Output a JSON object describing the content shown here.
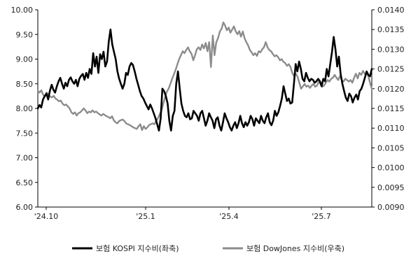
{
  "chart_data": {
    "type": "line",
    "title": "",
    "x_ticks": [
      "'24.10",
      "'25.1",
      "'25.4",
      "'25.7"
    ],
    "y_left": {
      "min": 6.0,
      "max": 10.0,
      "ticks": [
        "6.00",
        "6.50",
        "7.00",
        "7.50",
        "8.00",
        "8.50",
        "9.00",
        "9.50",
        "10.00"
      ]
    },
    "y_right": {
      "min": 0.009,
      "max": 0.014,
      "ticks": [
        "0.0090",
        "0.0095",
        "0.0100",
        "0.0105",
        "0.0110",
        "0.0115",
        "0.0120",
        "0.0125",
        "0.0130",
        "0.0135",
        "0.0140"
      ]
    },
    "grid": false,
    "legend_position": "bottom",
    "series": [
      {
        "name": "보험 KOSPI 지수비(좌축)",
        "axis": "left",
        "color": "#000000",
        "values": [
          8.0,
          8.07,
          8.02,
          8.18,
          8.25,
          8.3,
          8.18,
          8.36,
          8.48,
          8.38,
          8.32,
          8.45,
          8.55,
          8.62,
          8.5,
          8.4,
          8.52,
          8.45,
          8.58,
          8.63,
          8.55,
          8.5,
          8.58,
          8.45,
          8.6,
          8.66,
          8.7,
          8.58,
          8.72,
          8.62,
          8.8,
          8.7,
          9.12,
          8.85,
          9.05,
          8.72,
          9.1,
          9.0,
          9.15,
          8.85,
          8.95,
          9.35,
          9.6,
          9.3,
          9.15,
          9.0,
          8.75,
          8.6,
          8.5,
          8.4,
          8.5,
          8.72,
          8.68,
          8.85,
          8.92,
          8.88,
          8.75,
          8.6,
          8.48,
          8.35,
          8.25,
          8.2,
          8.12,
          8.05,
          7.98,
          8.08,
          8.0,
          7.9,
          7.8,
          7.68,
          7.55,
          7.8,
          8.4,
          8.35,
          8.25,
          8.1,
          7.75,
          7.55,
          7.85,
          7.95,
          8.5,
          8.75,
          8.4,
          8.1,
          7.95,
          7.85,
          7.82,
          7.9,
          7.78,
          7.8,
          7.95,
          7.9,
          7.85,
          7.75,
          7.9,
          7.95,
          7.8,
          7.65,
          7.75,
          7.9,
          7.82,
          7.75,
          7.6,
          7.78,
          7.82,
          7.65,
          7.55,
          7.72,
          7.9,
          7.8,
          7.72,
          7.62,
          7.55,
          7.65,
          7.72,
          7.6,
          7.7,
          7.85,
          7.7,
          7.62,
          7.72,
          7.65,
          7.72,
          7.85,
          7.78,
          7.65,
          7.8,
          7.75,
          7.7,
          7.85,
          7.75,
          7.7,
          7.82,
          7.9,
          7.72,
          7.66,
          7.75,
          7.95,
          7.85,
          7.92,
          8.05,
          8.2,
          8.45,
          8.3,
          8.15,
          8.2,
          8.1,
          8.12,
          8.5,
          8.9,
          8.75,
          8.95,
          8.8,
          8.6,
          8.55,
          8.72,
          8.62,
          8.55,
          8.6,
          8.58,
          8.52,
          8.55,
          8.6,
          8.55,
          8.45,
          8.6,
          8.55,
          8.8,
          8.65,
          8.9,
          9.15,
          9.45,
          9.2,
          8.85,
          9.05,
          8.7,
          8.5,
          8.35,
          8.22,
          8.15,
          8.3,
          8.25,
          8.12,
          8.22,
          8.28,
          8.18,
          8.35,
          8.4,
          8.5,
          8.62,
          8.75,
          8.68,
          8.65,
          8.8
        ]
      },
      {
        "name": "보험 DowJones 지수비(우축)",
        "axis": "right",
        "color": "#8c8c8c",
        "values": [
          0.01195,
          0.0119,
          0.01196,
          0.01185,
          0.0118,
          0.0119,
          0.01186,
          0.0118,
          0.01178,
          0.01182,
          0.01175,
          0.01172,
          0.01168,
          0.0117,
          0.01162,
          0.01158,
          0.0116,
          0.01155,
          0.0115,
          0.0114,
          0.01136,
          0.0114,
          0.01132,
          0.01138,
          0.0114,
          0.01145,
          0.0115,
          0.01145,
          0.01138,
          0.01142,
          0.0114,
          0.01145,
          0.0114,
          0.01142,
          0.01138,
          0.01135,
          0.01132,
          0.01136,
          0.01133,
          0.0113,
          0.01128,
          0.01125,
          0.0113,
          0.0112,
          0.01115,
          0.01112,
          0.01118,
          0.0112,
          0.01122,
          0.01118,
          0.01112,
          0.0111,
          0.01108,
          0.01105,
          0.01102,
          0.011,
          0.01098,
          0.01105,
          0.0111,
          0.01095,
          0.01105,
          0.01098,
          0.01102,
          0.01108,
          0.0111,
          0.01112,
          0.0111,
          0.01118,
          0.01125,
          0.01135,
          0.01145,
          0.01162,
          0.01178,
          0.01192,
          0.012,
          0.01212,
          0.01225,
          0.01236,
          0.01248,
          0.01262,
          0.01275,
          0.01285,
          0.01295,
          0.0129,
          0.01298,
          0.01305,
          0.01295,
          0.01288,
          0.01272,
          0.01285,
          0.013,
          0.01305,
          0.01298,
          0.01312,
          0.01302,
          0.01316,
          0.01295,
          0.01318,
          0.01255,
          0.01335,
          0.01285,
          0.01318,
          0.01328,
          0.01345,
          0.01352,
          0.01368,
          0.0136,
          0.01348,
          0.01355,
          0.01342,
          0.0135,
          0.01358,
          0.01345,
          0.01338,
          0.01346,
          0.01332,
          0.01345,
          0.01328,
          0.01318,
          0.0131,
          0.01298,
          0.01292,
          0.01285,
          0.0129,
          0.01283,
          0.01295,
          0.01292,
          0.013,
          0.01305,
          0.01318,
          0.01305,
          0.01298,
          0.01295,
          0.01288,
          0.01282,
          0.01285,
          0.0128,
          0.01272,
          0.01275,
          0.01268,
          0.01265,
          0.01258,
          0.01262,
          0.01255,
          0.0124,
          0.01232,
          0.01238,
          0.0123,
          0.01215,
          0.012,
          0.01206,
          0.01212,
          0.01205,
          0.01208,
          0.01202,
          0.01208,
          0.01212,
          0.01205,
          0.01208,
          0.01218,
          0.01212,
          0.01205,
          0.01208,
          0.01215,
          0.01222,
          0.01218,
          0.01225,
          0.01228,
          0.01235,
          0.01228,
          0.01222,
          0.01232,
          0.01222,
          0.01218,
          0.01225,
          0.01222,
          0.01218,
          0.01222,
          0.01215,
          0.01228,
          0.01238,
          0.01226,
          0.0124,
          0.01235,
          0.01245,
          0.01238,
          0.0124,
          0.01232,
          0.01215,
          0.012
        ]
      }
    ]
  }
}
